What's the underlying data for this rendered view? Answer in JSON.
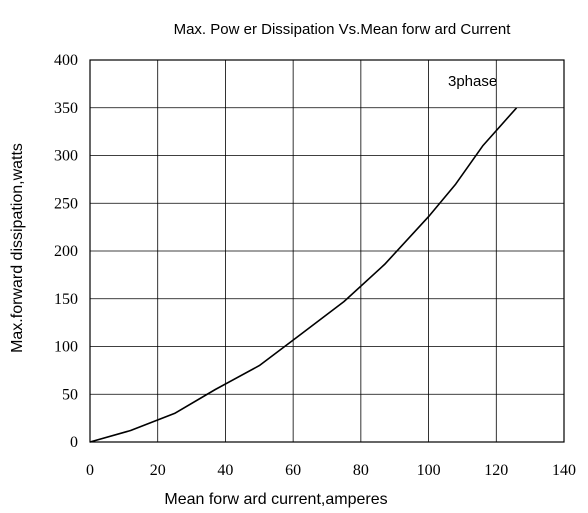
{
  "chart_data": {
    "type": "line",
    "title": "Max. Pow er Dissipation Vs.Mean forw ard Current",
    "xlabel": "Mean forw ard current,amperes",
    "ylabel": "Max.forward dissipation,watts",
    "xlim": [
      0,
      140
    ],
    "ylim": [
      0,
      400
    ],
    "x_ticks": [
      "0",
      "20",
      "40",
      "60",
      "80",
      "100",
      "120",
      "140"
    ],
    "y_ticks": [
      "0",
      "50",
      "100",
      "150",
      "200",
      "250",
      "300",
      "350",
      "400"
    ],
    "grid": true,
    "legend": "none",
    "annotations": [
      "3phase"
    ],
    "series": [
      {
        "name": "3phase",
        "x": [
          0,
          12,
          25,
          37,
          50,
          62,
          75,
          87,
          100,
          108,
          116,
          126
        ],
        "y": [
          0,
          12,
          30,
          55,
          80,
          112,
          147,
          186,
          236,
          270,
          310,
          350
        ]
      }
    ],
    "colors": {
      "line": "#000000",
      "grid": "#000000"
    }
  }
}
